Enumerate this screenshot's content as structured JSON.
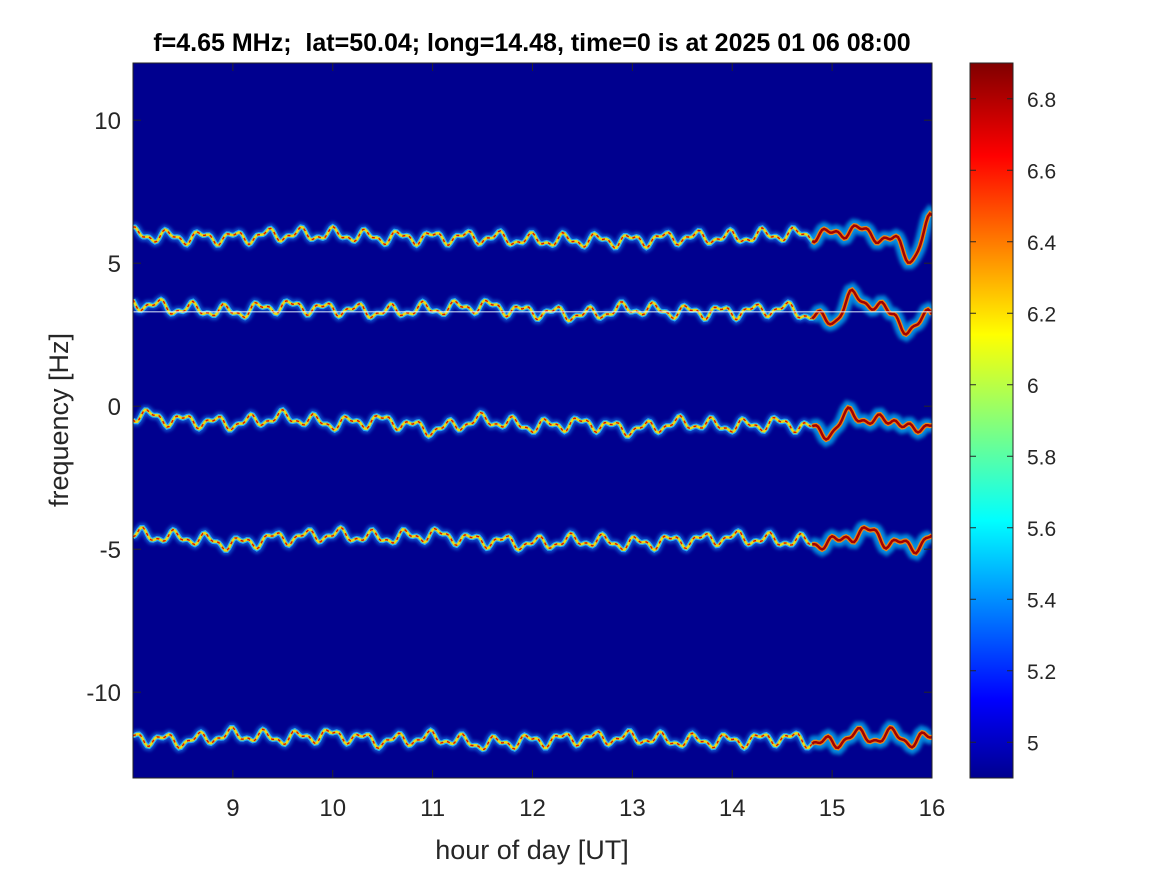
{
  "chart_data": {
    "type": "heatmap",
    "title": "f=4.65 MHz;  lat=50.04; long=14.48, time=0 is at 2025 01 06 08:00",
    "xlabel": "hour of day [UT]",
    "ylabel": "frequency [Hz]",
    "xlim": [
      8.0,
      16.0
    ],
    "ylim": [
      -13.0,
      12.0
    ],
    "x_ticks": [
      9,
      10,
      11,
      12,
      13,
      14,
      15,
      16
    ],
    "x_tick_labels": [
      "9",
      "10",
      "11",
      "12",
      "13",
      "14",
      "15",
      "16"
    ],
    "y_ticks": [
      10,
      5,
      0,
      -5,
      -10
    ],
    "y_tick_labels": [
      "10",
      "5",
      "0",
      "-5",
      "-10"
    ],
    "grid": false,
    "background_value": 4.9,
    "colorbar": {
      "colormap": "jet",
      "clim": [
        4.9,
        6.9
      ],
      "ticks": [
        6.8,
        6.6,
        6.4,
        6.2,
        6.0,
        5.8,
        5.6,
        5.4,
        5.2,
        5.0
      ],
      "tick_labels": [
        "6.8",
        "6.6",
        "6.4",
        "6.2",
        "6",
        "5.8",
        "5.6",
        "5.4",
        "5.2",
        "5"
      ]
    },
    "traces": [
      {
        "center_hz": 6.0,
        "x": [
          8.0,
          8.5,
          9.0,
          9.5,
          10.0,
          10.5,
          11.0,
          11.5,
          12.0,
          12.5,
          13.0,
          13.5,
          14.0,
          14.5,
          15.0,
          15.2,
          15.4,
          15.6,
          15.8,
          16.0
        ],
        "y": [
          6.0,
          5.9,
          5.9,
          6.0,
          6.0,
          5.9,
          5.9,
          5.9,
          5.8,
          5.8,
          5.8,
          5.9,
          5.9,
          6.0,
          6.0,
          6.2,
          6.0,
          5.8,
          5.2,
          6.5
        ]
      },
      {
        "center_hz": 3.3,
        "x": [
          8.0,
          8.5,
          9.0,
          9.5,
          10.0,
          10.5,
          11.0,
          11.5,
          12.0,
          12.5,
          13.0,
          13.5,
          14.0,
          14.5,
          15.0,
          15.2,
          15.4,
          15.6,
          15.8,
          16.0
        ],
        "y": [
          3.6,
          3.4,
          3.3,
          3.5,
          3.4,
          3.3,
          3.4,
          3.5,
          3.3,
          3.2,
          3.4,
          3.3,
          3.3,
          3.4,
          3.0,
          3.8,
          3.6,
          3.2,
          2.6,
          3.4
        ]
      },
      {
        "center_hz": -0.5,
        "x": [
          8.0,
          8.5,
          9.0,
          9.5,
          10.0,
          10.5,
          11.0,
          11.5,
          12.0,
          12.5,
          13.0,
          13.5,
          14.0,
          14.5,
          15.0,
          15.2,
          15.4,
          15.6,
          15.8,
          16.0
        ],
        "y": [
          -0.3,
          -0.5,
          -0.6,
          -0.4,
          -0.6,
          -0.5,
          -0.8,
          -0.5,
          -0.7,
          -0.6,
          -0.8,
          -0.6,
          -0.7,
          -0.6,
          -0.9,
          -0.2,
          -0.6,
          -0.4,
          -0.9,
          -0.5
        ]
      },
      {
        "center_hz": -4.6,
        "x": [
          8.0,
          8.5,
          9.0,
          9.5,
          10.0,
          10.5,
          11.0,
          11.5,
          12.0,
          12.5,
          13.0,
          13.5,
          14.0,
          14.5,
          15.0,
          15.2,
          15.4,
          15.6,
          15.8,
          16.0
        ],
        "y": [
          -4.5,
          -4.6,
          -4.8,
          -4.6,
          -4.5,
          -4.6,
          -4.5,
          -4.7,
          -4.8,
          -4.7,
          -4.8,
          -4.7,
          -4.6,
          -4.7,
          -4.8,
          -4.5,
          -4.4,
          -4.8,
          -4.9,
          -4.6
        ]
      },
      {
        "center_hz": -11.6,
        "x": [
          8.0,
          8.5,
          9.0,
          9.5,
          10.0,
          10.5,
          11.0,
          11.5,
          12.0,
          12.5,
          13.0,
          13.5,
          14.0,
          14.5,
          15.0,
          15.2,
          15.4,
          15.6,
          15.8,
          16.0
        ],
        "y": [
          -11.6,
          -11.7,
          -11.5,
          -11.6,
          -11.5,
          -11.7,
          -11.6,
          -11.8,
          -11.7,
          -11.6,
          -11.6,
          -11.7,
          -11.7,
          -11.6,
          -11.8,
          -11.5,
          -11.6,
          -11.5,
          -11.7,
          -11.6
        ]
      }
    ],
    "reference_line_hz": 3.3
  }
}
